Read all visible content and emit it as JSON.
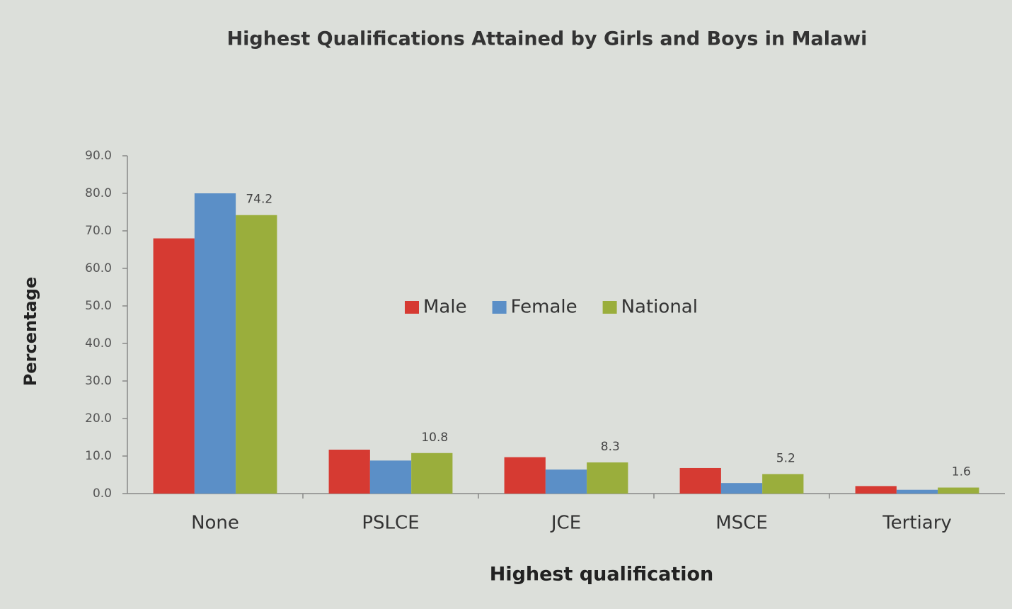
{
  "chart_data": {
    "type": "bar",
    "title": "Highest Qualifications Attained by Girls and Boys in Malawi",
    "x_label": "Highest qualification",
    "y_label": "Percentage",
    "categories": [
      "None",
      "PSLCE",
      "JCE",
      "MSCE",
      "Tertiary"
    ],
    "series": [
      {
        "name": "Male",
        "color": "#d63a32",
        "values": [
          68.0,
          11.7,
          9.7,
          6.8,
          2.0
        ]
      },
      {
        "name": "Female",
        "color": "#5b8fc7",
        "values": [
          80.0,
          8.8,
          6.4,
          2.8,
          1.0
        ]
      },
      {
        "name": "National",
        "color": "#9aae3c",
        "values": [
          74.2,
          10.8,
          8.3,
          5.2,
          1.6
        ],
        "show_labels": true
      }
    ],
    "ylim": [
      0,
      90
    ],
    "yticks": [
      {
        "value": 0,
        "label": "0.0"
      },
      {
        "value": 10,
        "label": "10.0"
      },
      {
        "value": 20,
        "label": "20.0"
      },
      {
        "value": 30,
        "label": "30.0"
      },
      {
        "value": 40,
        "label": "40.0"
      },
      {
        "value": 50,
        "label": "50.0"
      },
      {
        "value": 60,
        "label": "60.0"
      },
      {
        "value": 70,
        "label": "70.0"
      },
      {
        "value": 80,
        "label": "80.0"
      },
      {
        "value": 90,
        "label": "90.0"
      }
    ],
    "grid": false,
    "legend": "center"
  }
}
